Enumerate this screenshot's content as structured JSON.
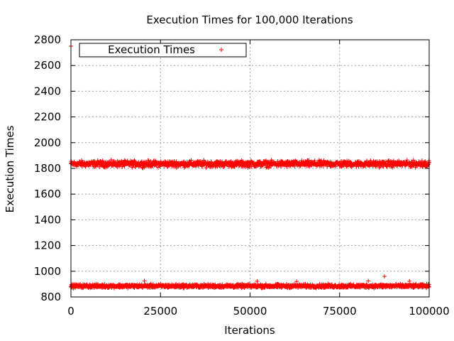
{
  "chart_data": {
    "type": "scatter",
    "title": "Execution Times for 100,000 Iterations",
    "xlabel": "Iterations",
    "ylabel": "Execution Times",
    "xlim": [
      0,
      100000
    ],
    "ylim": [
      800,
      2800
    ],
    "xticks": [
      "0",
      "25000",
      "50000",
      "75000",
      "100000"
    ],
    "yticks": [
      "800",
      "1000",
      "1200",
      "1400",
      "1600",
      "1800",
      "2000",
      "2200",
      "2400",
      "2600",
      "2800"
    ],
    "grid": true,
    "legend_position": "top-left",
    "marker": "plus",
    "series": [
      {
        "name": "Execution Times",
        "color": "#ff0000",
        "bands": [
          {
            "x_range": [
              0,
              100000
            ],
            "center": 1835,
            "spread": 35
          },
          {
            "x_range": [
              0,
              100000
            ],
            "center": 885,
            "spread": 20
          }
        ],
        "outliers": [
          {
            "x": 0,
            "y": 2750
          },
          {
            "x": 87500,
            "y": 960
          },
          {
            "x": 20500,
            "y": 925
          },
          {
            "x": 52000,
            "y": 922
          },
          {
            "x": 63000,
            "y": 920
          },
          {
            "x": 83000,
            "y": 924
          },
          {
            "x": 94500,
            "y": 922
          },
          {
            "x": 98000,
            "y": 1860
          }
        ]
      }
    ]
  }
}
